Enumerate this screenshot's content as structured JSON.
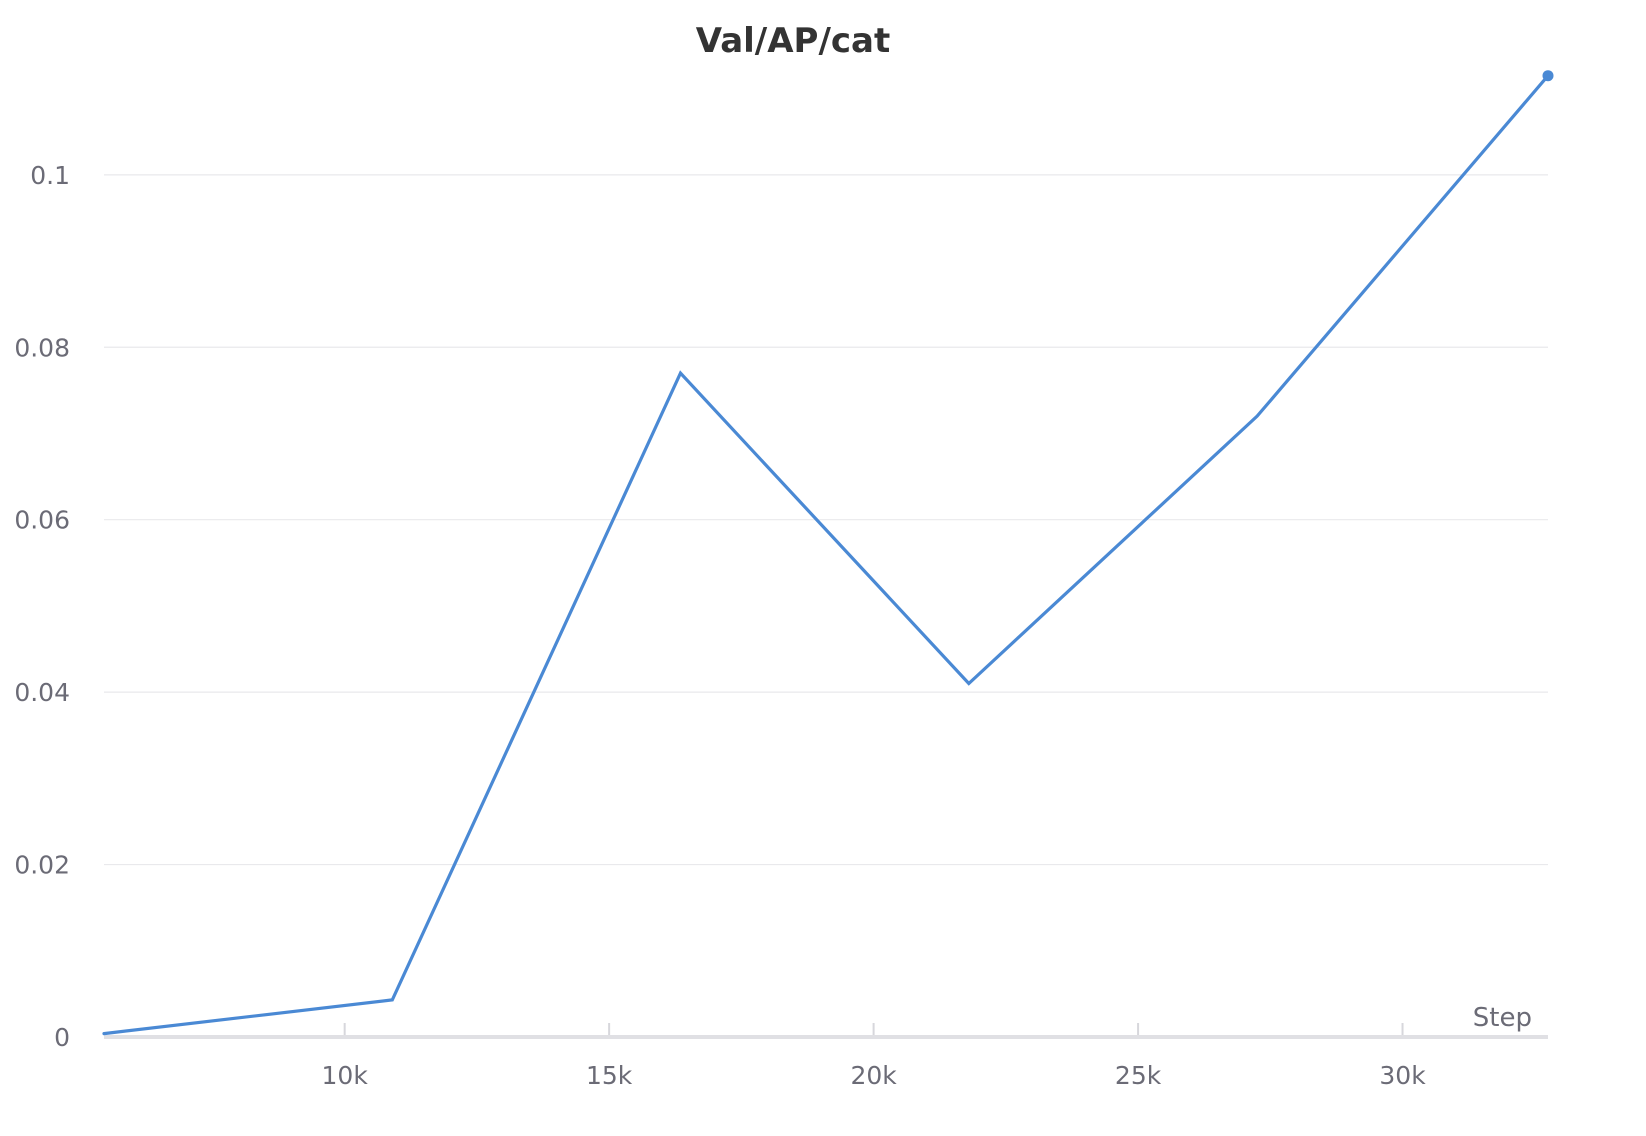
{
  "chart_data": {
    "type": "line",
    "title": "Val/AP/cat",
    "xlabel": "Step",
    "ylabel": "",
    "x_ticks": [
      10000,
      15000,
      20000,
      25000,
      30000
    ],
    "x_tick_labels": [
      "10k",
      "15k",
      "20k",
      "25k",
      "30k"
    ],
    "y_ticks": [
      0,
      0.02,
      0.04,
      0.06,
      0.08,
      0.1
    ],
    "y_tick_labels": [
      "0",
      "0.02",
      "0.04",
      "0.06",
      "0.08",
      "0.1"
    ],
    "xlim": [
      5450,
      32750
    ],
    "ylim": [
      0,
      0.111
    ],
    "grid": true,
    "series": [
      {
        "color": "#4a89d4",
        "x": [
          5450,
          10900,
          16350,
          21800,
          27250,
          32750
        ],
        "y": [
          0.0004,
          0.0043,
          0.077,
          0.041,
          0.072,
          0.1115
        ],
        "last_point_marker": true
      }
    ]
  }
}
